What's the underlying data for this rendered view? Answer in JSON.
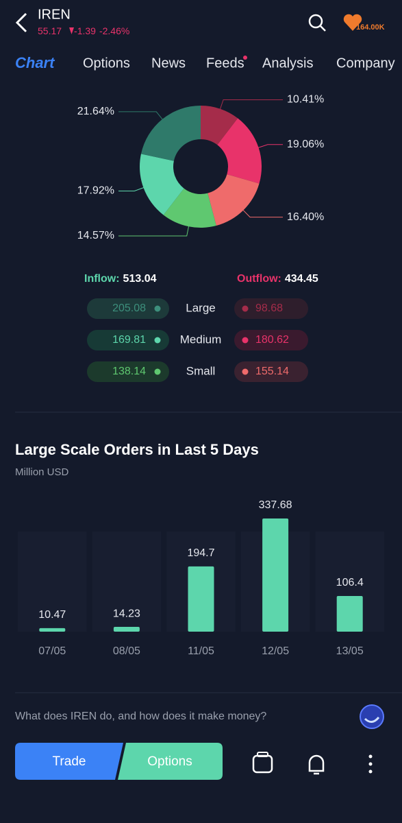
{
  "header": {
    "ticker": "IREN",
    "price": "55.17",
    "change": "-1.39",
    "change_pct": "-2.46%",
    "followers": "164.00K"
  },
  "tabs": [
    "Chart",
    "Options",
    "News",
    "Feeds",
    "Analysis",
    "Company"
  ],
  "chart_data": [
    {
      "type": "pie",
      "donut": true,
      "values": [
        10.41,
        19.06,
        16.4,
        14.57,
        17.92,
        21.64
      ],
      "value_labels": [
        "10.41%",
        "19.06%",
        "16.40%",
        "14.57%",
        "17.92%",
        "21.64%"
      ],
      "colors": [
        "#a52c4a",
        "#e8336a",
        "#ef6b6b",
        "#5fc870",
        "#5dd6ac",
        "#2f7a6a"
      ]
    },
    {
      "type": "bar",
      "title": "Large Scale Orders in Last 5 Days",
      "subtitle": "Million USD",
      "categories": [
        "07/05",
        "08/05",
        "11/05",
        "12/05",
        "13/05"
      ],
      "values": [
        10.47,
        14.23,
        194.7,
        337.68,
        106.4
      ],
      "color": "#5dd6ac"
    }
  ],
  "flow": {
    "inflow_label": "Inflow:",
    "inflow": 513.04,
    "outflow_label": "Outflow:",
    "outflow": 434.45,
    "rows": [
      {
        "label": "Large",
        "inflow": 205.08,
        "outflow": 98.68
      },
      {
        "label": "Medium",
        "inflow": 169.81,
        "outflow": 180.62
      },
      {
        "label": "Small",
        "inflow": 138.14,
        "outflow": 155.14
      }
    ]
  },
  "question": "What does IREN do, and how does it make money?",
  "buttons": [
    "Trade",
    "Options"
  ]
}
